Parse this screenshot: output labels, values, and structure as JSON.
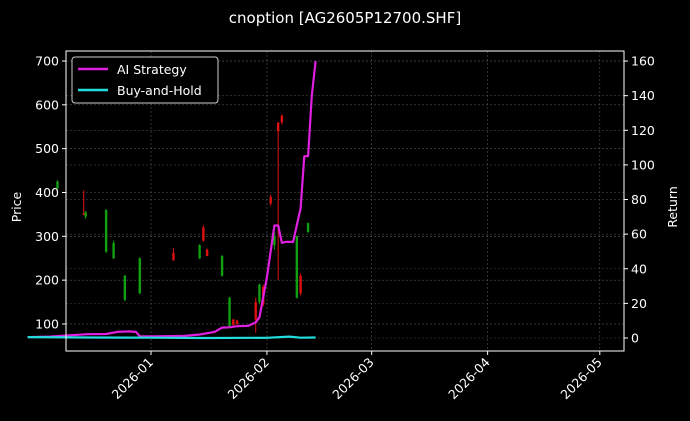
{
  "chart_data": {
    "type": "line",
    "title": "cnoption [AG2605P12700.SHF]",
    "xlabel": "",
    "ylabel": "Price",
    "ylabel_right": "Return",
    "ylim": [
      40,
      720
    ],
    "ylim_right": [
      -8,
      166
    ],
    "grid": true,
    "legend_position": "upper left",
    "x_ticks": [
      "2026-01",
      "2026-02",
      "2026-03",
      "2026-04",
      "2026-05"
    ],
    "y_ticks_left": [
      100,
      200,
      300,
      400,
      500,
      600,
      700
    ],
    "y_ticks_right": [
      0,
      20,
      40,
      60,
      80,
      100,
      120,
      140,
      160
    ],
    "legend": [
      {
        "name": "AI Strategy",
        "color": "#e020e0"
      },
      {
        "name": "Buy-and-Hold",
        "color": "#22dddd"
      }
    ],
    "candles": [
      {
        "date": "2025-12-07",
        "open": 425,
        "close": 410,
        "high": 428,
        "low": 408,
        "color": "green"
      },
      {
        "date": "2025-12-14",
        "open": 350,
        "close": 352,
        "high": 405,
        "low": 350,
        "color": "red"
      },
      {
        "date": "2025-12-14b",
        "open": 355,
        "close": 345,
        "high": 358,
        "low": 340,
        "color": "green"
      },
      {
        "date": "2025-12-20",
        "open": 360,
        "close": 265,
        "high": 362,
        "low": 262,
        "color": "green"
      },
      {
        "date": "2025-12-22",
        "open": 285,
        "close": 250,
        "high": 290,
        "low": 248,
        "color": "green"
      },
      {
        "date": "2025-12-25",
        "open": 210,
        "close": 155,
        "high": 212,
        "low": 152,
        "color": "green"
      },
      {
        "date": "2025-12-29",
        "open": 250,
        "close": 170,
        "high": 252,
        "low": 168,
        "color": "green"
      },
      {
        "date": "2026-01-07",
        "open": 245,
        "close": 262,
        "high": 273,
        "low": 245,
        "color": "red"
      },
      {
        "date": "2026-01-14",
        "open": 280,
        "close": 250,
        "high": 282,
        "low": 248,
        "color": "green"
      },
      {
        "date": "2026-01-15",
        "open": 290,
        "close": 320,
        "high": 325,
        "low": 288,
        "color": "red"
      },
      {
        "date": "2026-01-16",
        "open": 255,
        "close": 270,
        "high": 272,
        "low": 255,
        "color": "red"
      },
      {
        "date": "2026-01-20",
        "open": 255,
        "close": 210,
        "high": 257,
        "low": 208,
        "color": "green"
      },
      {
        "date": "2026-01-22",
        "open": 160,
        "close": 95,
        "high": 162,
        "low": 93,
        "color": "green"
      },
      {
        "date": "2026-01-23",
        "open": 98,
        "close": 110,
        "high": 112,
        "low": 95,
        "color": "red"
      },
      {
        "date": "2026-01-24",
        "open": 100,
        "close": 108,
        "high": 110,
        "low": 98,
        "color": "red"
      },
      {
        "date": "2026-01-29",
        "open": 110,
        "close": 150,
        "high": 160,
        "low": 80,
        "color": "red"
      },
      {
        "date": "2026-01-30",
        "open": 190,
        "close": 150,
        "high": 192,
        "low": 145,
        "color": "green"
      },
      {
        "date": "2026-01-31",
        "open": 145,
        "close": 185,
        "high": 190,
        "low": 140,
        "color": "red"
      },
      {
        "date": "2026-02-02",
        "open": 375,
        "close": 390,
        "high": 395,
        "low": 370,
        "color": "red"
      },
      {
        "date": "2026-02-03",
        "open": 300,
        "close": 280,
        "high": 310,
        "low": 270,
        "color": "green"
      },
      {
        "date": "2026-02-04",
        "open": 540,
        "close": 560,
        "high": 560,
        "low": 200,
        "color": "red"
      },
      {
        "date": "2026-02-05",
        "open": 560,
        "close": 575,
        "high": 578,
        "low": 555,
        "color": "red"
      },
      {
        "date": "2026-02-09",
        "open": 300,
        "close": 160,
        "high": 302,
        "low": 158,
        "color": "green"
      },
      {
        "date": "2026-02-10",
        "open": 170,
        "close": 210,
        "high": 215,
        "low": 165,
        "color": "red"
      },
      {
        "date": "2026-02-12",
        "open": 330,
        "close": 310,
        "high": 332,
        "low": 308,
        "color": "green"
      }
    ],
    "series": [
      {
        "name": "AI Strategy",
        "axis": "right",
        "x": [
          "2025-11-29",
          "2025-12-05",
          "2025-12-10",
          "2025-12-15",
          "2025-12-20",
          "2025-12-23",
          "2025-12-26",
          "2025-12-28",
          "2025-12-29",
          "2026-01-02",
          "2026-01-10",
          "2026-01-14",
          "2026-01-18",
          "2026-01-20",
          "2026-01-22",
          "2026-01-24",
          "2026-01-27",
          "2026-01-29",
          "2026-01-30",
          "2026-02-01",
          "2026-02-03",
          "2026-02-04",
          "2026-02-05",
          "2026-02-06",
          "2026-02-08",
          "2026-02-10",
          "2026-02-11",
          "2026-02-12",
          "2026-02-13",
          "2026-02-14"
        ],
        "values": [
          0.5,
          0.8,
          1.5,
          2.2,
          2.3,
          3.5,
          3.8,
          3.5,
          1.0,
          1.0,
          1.2,
          2.0,
          3.5,
          6.0,
          6.2,
          6.8,
          7.0,
          9.0,
          12.0,
          35.0,
          65.0,
          65.0,
          55.0,
          55.5,
          55.5,
          75.0,
          105.0,
          105.0,
          140.0,
          160.0
        ]
      },
      {
        "name": "Buy-and-Hold",
        "axis": "right",
        "x": [
          "2025-11-29",
          "2025-12-15",
          "2026-01-01",
          "2026-01-15",
          "2026-02-01",
          "2026-02-07",
          "2026-02-10",
          "2026-02-14"
        ],
        "values": [
          0.5,
          0.3,
          0.2,
          0.0,
          0.1,
          0.8,
          0.2,
          0.3
        ]
      }
    ]
  }
}
